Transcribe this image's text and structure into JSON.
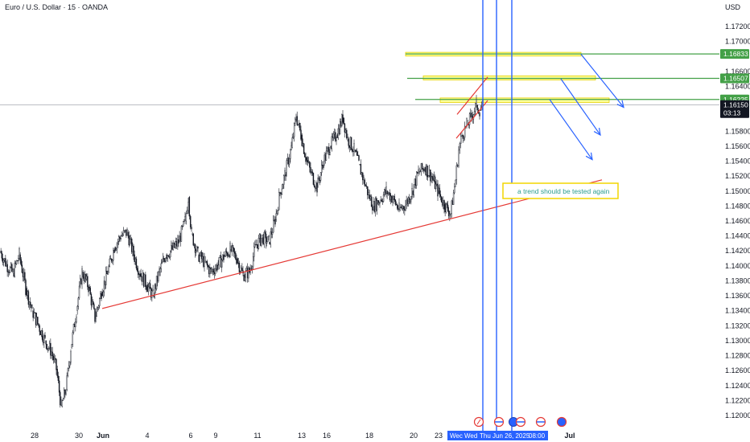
{
  "header": {
    "title": "Euro / U.S. Dollar · 15 · OANDA",
    "currency": "USD"
  },
  "price_tags": {
    "current_price": "1.16150",
    "countdown": "03:13"
  },
  "annotation": {
    "note": "a trend should be tested again"
  },
  "time_tag": {
    "segments": [
      "Wec",
      "Wed",
      "Thu Jun 26, 2025",
      "08:00"
    ]
  },
  "colors": {
    "candle": "#131722",
    "trendline": "#e53935",
    "vline": "#2962ff",
    "level": "#43a047",
    "zone_fill": "#ffff99",
    "zone_border": "#e6d200",
    "note_border": "#f2d600",
    "current_price_bg": "#131722"
  },
  "chart_data": {
    "type": "candlestick",
    "symbol": "Euro / U.S. Dollar",
    "interval": "15",
    "source": "OANDA",
    "ylim": [
      1.1194,
      1.18
    ],
    "y_ticks": [
      "1.17200",
      "1.17000",
      "1.16600",
      "1.16400",
      "1.15800",
      "1.15600",
      "1.15400",
      "1.15200",
      "1.15000",
      "1.14800",
      "1.14600",
      "1.14400",
      "1.14200",
      "1.14000",
      "1.13800",
      "1.13600",
      "1.13400",
      "1.13200",
      "1.13000",
      "1.12800",
      "1.12600",
      "1.12400",
      "1.12200",
      "1.12000"
    ],
    "x_ticks": [
      "28",
      "30",
      "Jun",
      "4",
      "6",
      "9",
      "11",
      "13",
      "16",
      "18",
      "20",
      "23",
      "Jul"
    ],
    "price_path": [
      [
        0,
        1.142
      ],
      [
        8,
        1.1402
      ],
      [
        16,
        1.139
      ],
      [
        24,
        1.1415
      ],
      [
        32,
        1.137
      ],
      [
        40,
        1.134
      ],
      [
        48,
        1.132
      ],
      [
        56,
        1.13
      ],
      [
        64,
        1.1285
      ],
      [
        70,
        1.1262
      ],
      [
        76,
        1.1212
      ],
      [
        82,
        1.1235
      ],
      [
        88,
        1.129
      ],
      [
        95,
        1.134
      ],
      [
        102,
        1.1392
      ],
      [
        110,
        1.1372
      ],
      [
        118,
        1.133
      ],
      [
        126,
        1.1365
      ],
      [
        134,
        1.1392
      ],
      [
        142,
        1.1425
      ],
      [
        150,
        1.144
      ],
      [
        158,
        1.1445
      ],
      [
        166,
        1.1415
      ],
      [
        174,
        1.139
      ],
      [
        182,
        1.1375
      ],
      [
        190,
        1.136
      ],
      [
        198,
        1.1392
      ],
      [
        206,
        1.1415
      ],
      [
        214,
        1.1422
      ],
      [
        222,
        1.1432
      ],
      [
        230,
        1.146
      ],
      [
        234,
        1.1492
      ],
      [
        238,
        1.1442
      ],
      [
        246,
        1.1415
      ],
      [
        254,
        1.1405
      ],
      [
        262,
        1.1392
      ],
      [
        270,
        1.14
      ],
      [
        278,
        1.1412
      ],
      [
        286,
        1.1422
      ],
      [
        294,
        1.141
      ],
      [
        302,
        1.1388
      ],
      [
        310,
        1.1392
      ],
      [
        318,
        1.1428
      ],
      [
        326,
        1.1438
      ],
      [
        334,
        1.1432
      ],
      [
        342,
        1.1462
      ],
      [
        348,
        1.1498
      ],
      [
        354,
        1.1522
      ],
      [
        362,
        1.1558
      ],
      [
        368,
        1.16
      ],
      [
        374,
        1.1575
      ],
      [
        380,
        1.1545
      ],
      [
        386,
        1.1525
      ],
      [
        394,
        1.1505
      ],
      [
        402,
        1.154
      ],
      [
        410,
        1.156
      ],
      [
        418,
        1.1575
      ],
      [
        426,
        1.1598
      ],
      [
        432,
        1.157
      ],
      [
        440,
        1.1555
      ],
      [
        446,
        1.1535
      ],
      [
        452,
        1.1515
      ],
      [
        458,
        1.1495
      ],
      [
        464,
        1.148
      ],
      [
        472,
        1.1488
      ],
      [
        480,
        1.15
      ],
      [
        488,
        1.149
      ],
      [
        496,
        1.1475
      ],
      [
        504,
        1.1482
      ],
      [
        512,
        1.15
      ],
      [
        520,
        1.1525
      ],
      [
        528,
        1.1532
      ],
      [
        536,
        1.152
      ],
      [
        544,
        1.15
      ],
      [
        552,
        1.1482
      ],
      [
        560,
        1.147
      ],
      [
        566,
        1.1515
      ],
      [
        570,
        1.1555
      ],
      [
        574,
        1.1575
      ],
      [
        580,
        1.1588
      ],
      [
        586,
        1.16
      ],
      [
        592,
        1.1615
      ],
      [
        596,
        1.1608
      ],
      [
        600,
        1.1615
      ]
    ],
    "horizontal_levels": [
      1.16833,
      1.16507,
      1.16225
    ],
    "current_price": 1.1615,
    "supply_zones": [
      {
        "x_start": 504,
        "x_end": 722,
        "price_top": 1.16855,
        "price_bottom": 1.16805
      },
      {
        "x_start": 526,
        "x_end": 740,
        "price_top": 1.1654,
        "price_bottom": 1.16485
      },
      {
        "x_start": 547,
        "x_end": 757,
        "price_top": 1.16245,
        "price_bottom": 1.16185
      }
    ],
    "trendline": {
      "x1": 127,
      "price1": 1.1343,
      "x2": 748,
      "price2": 1.1515
    },
    "channel_lines": [
      {
        "x1": 568,
        "price1": 1.16025,
        "x2": 606,
        "price2": 1.16525
      },
      {
        "x1": 567,
        "price1": 1.15705,
        "x2": 606,
        "price2": 1.1621
      }
    ],
    "vertical_lines_x": [
      600,
      617,
      636
    ],
    "forecast_arrows": [
      {
        "x1": 722,
        "price1": 1.1683,
        "x2": 775,
        "price2": 1.1612
      },
      {
        "x1": 697,
        "price1": 1.165,
        "x2": 746,
        "price2": 1.1575
      },
      {
        "x1": 683,
        "price1": 1.16225,
        "x2": 736,
        "price2": 1.1542
      }
    ]
  }
}
